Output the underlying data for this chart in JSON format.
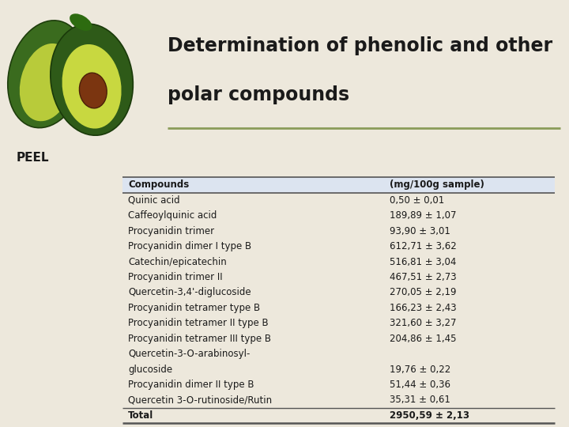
{
  "title_line1": "Determination of phenolic and other",
  "title_line2": "polar compounds",
  "section_label": "PEEL",
  "bg_color": "#ede8dc",
  "header_color": "#dce4f0",
  "table_header": [
    "Compounds",
    "(mg/100g sample)"
  ],
  "rows": [
    [
      "Quinic acid",
      "0,50 ± 0,01"
    ],
    [
      "Caffeoylquinic acid",
      "189,89 ± 1,07"
    ],
    [
      "Procyanidin trimer",
      "93,90 ± 3,01"
    ],
    [
      "Procyanidin dimer I type B",
      "612,71 ± 3,62"
    ],
    [
      "Catechin/epicatechin",
      "516,81 ± 3,04"
    ],
    [
      "Procyanidin trimer II",
      "467,51 ± 2,73"
    ],
    [
      "Quercetin-3,4'-diglucoside",
      "270,05 ± 2,19"
    ],
    [
      "Procyanidin tetramer type B",
      "166,23 ± 2,43"
    ],
    [
      "Procyanidin tetramer II type B",
      "321,60 ± 3,27"
    ],
    [
      "Procyanidin tetramer III type B",
      "204,86 ± 1,45"
    ],
    [
      "Quercetin-3-O-arabinosyl-",
      ""
    ],
    [
      "glucoside",
      "19,76 ± 0,22"
    ],
    [
      "Procyanidin dimer II type B",
      "51,44 ± 0,36"
    ],
    [
      "Quercetin 3-O-rutinoside/Rutin",
      "35,31 ± 0,61"
    ],
    [
      "Total",
      "2950,59 ± 2,13"
    ]
  ],
  "title_fontsize": 17,
  "section_fontsize": 11,
  "table_fontsize": 8.5,
  "separator_color": "#8b9c5a",
  "line_color": "#555555",
  "text_color": "#1a1a1a"
}
